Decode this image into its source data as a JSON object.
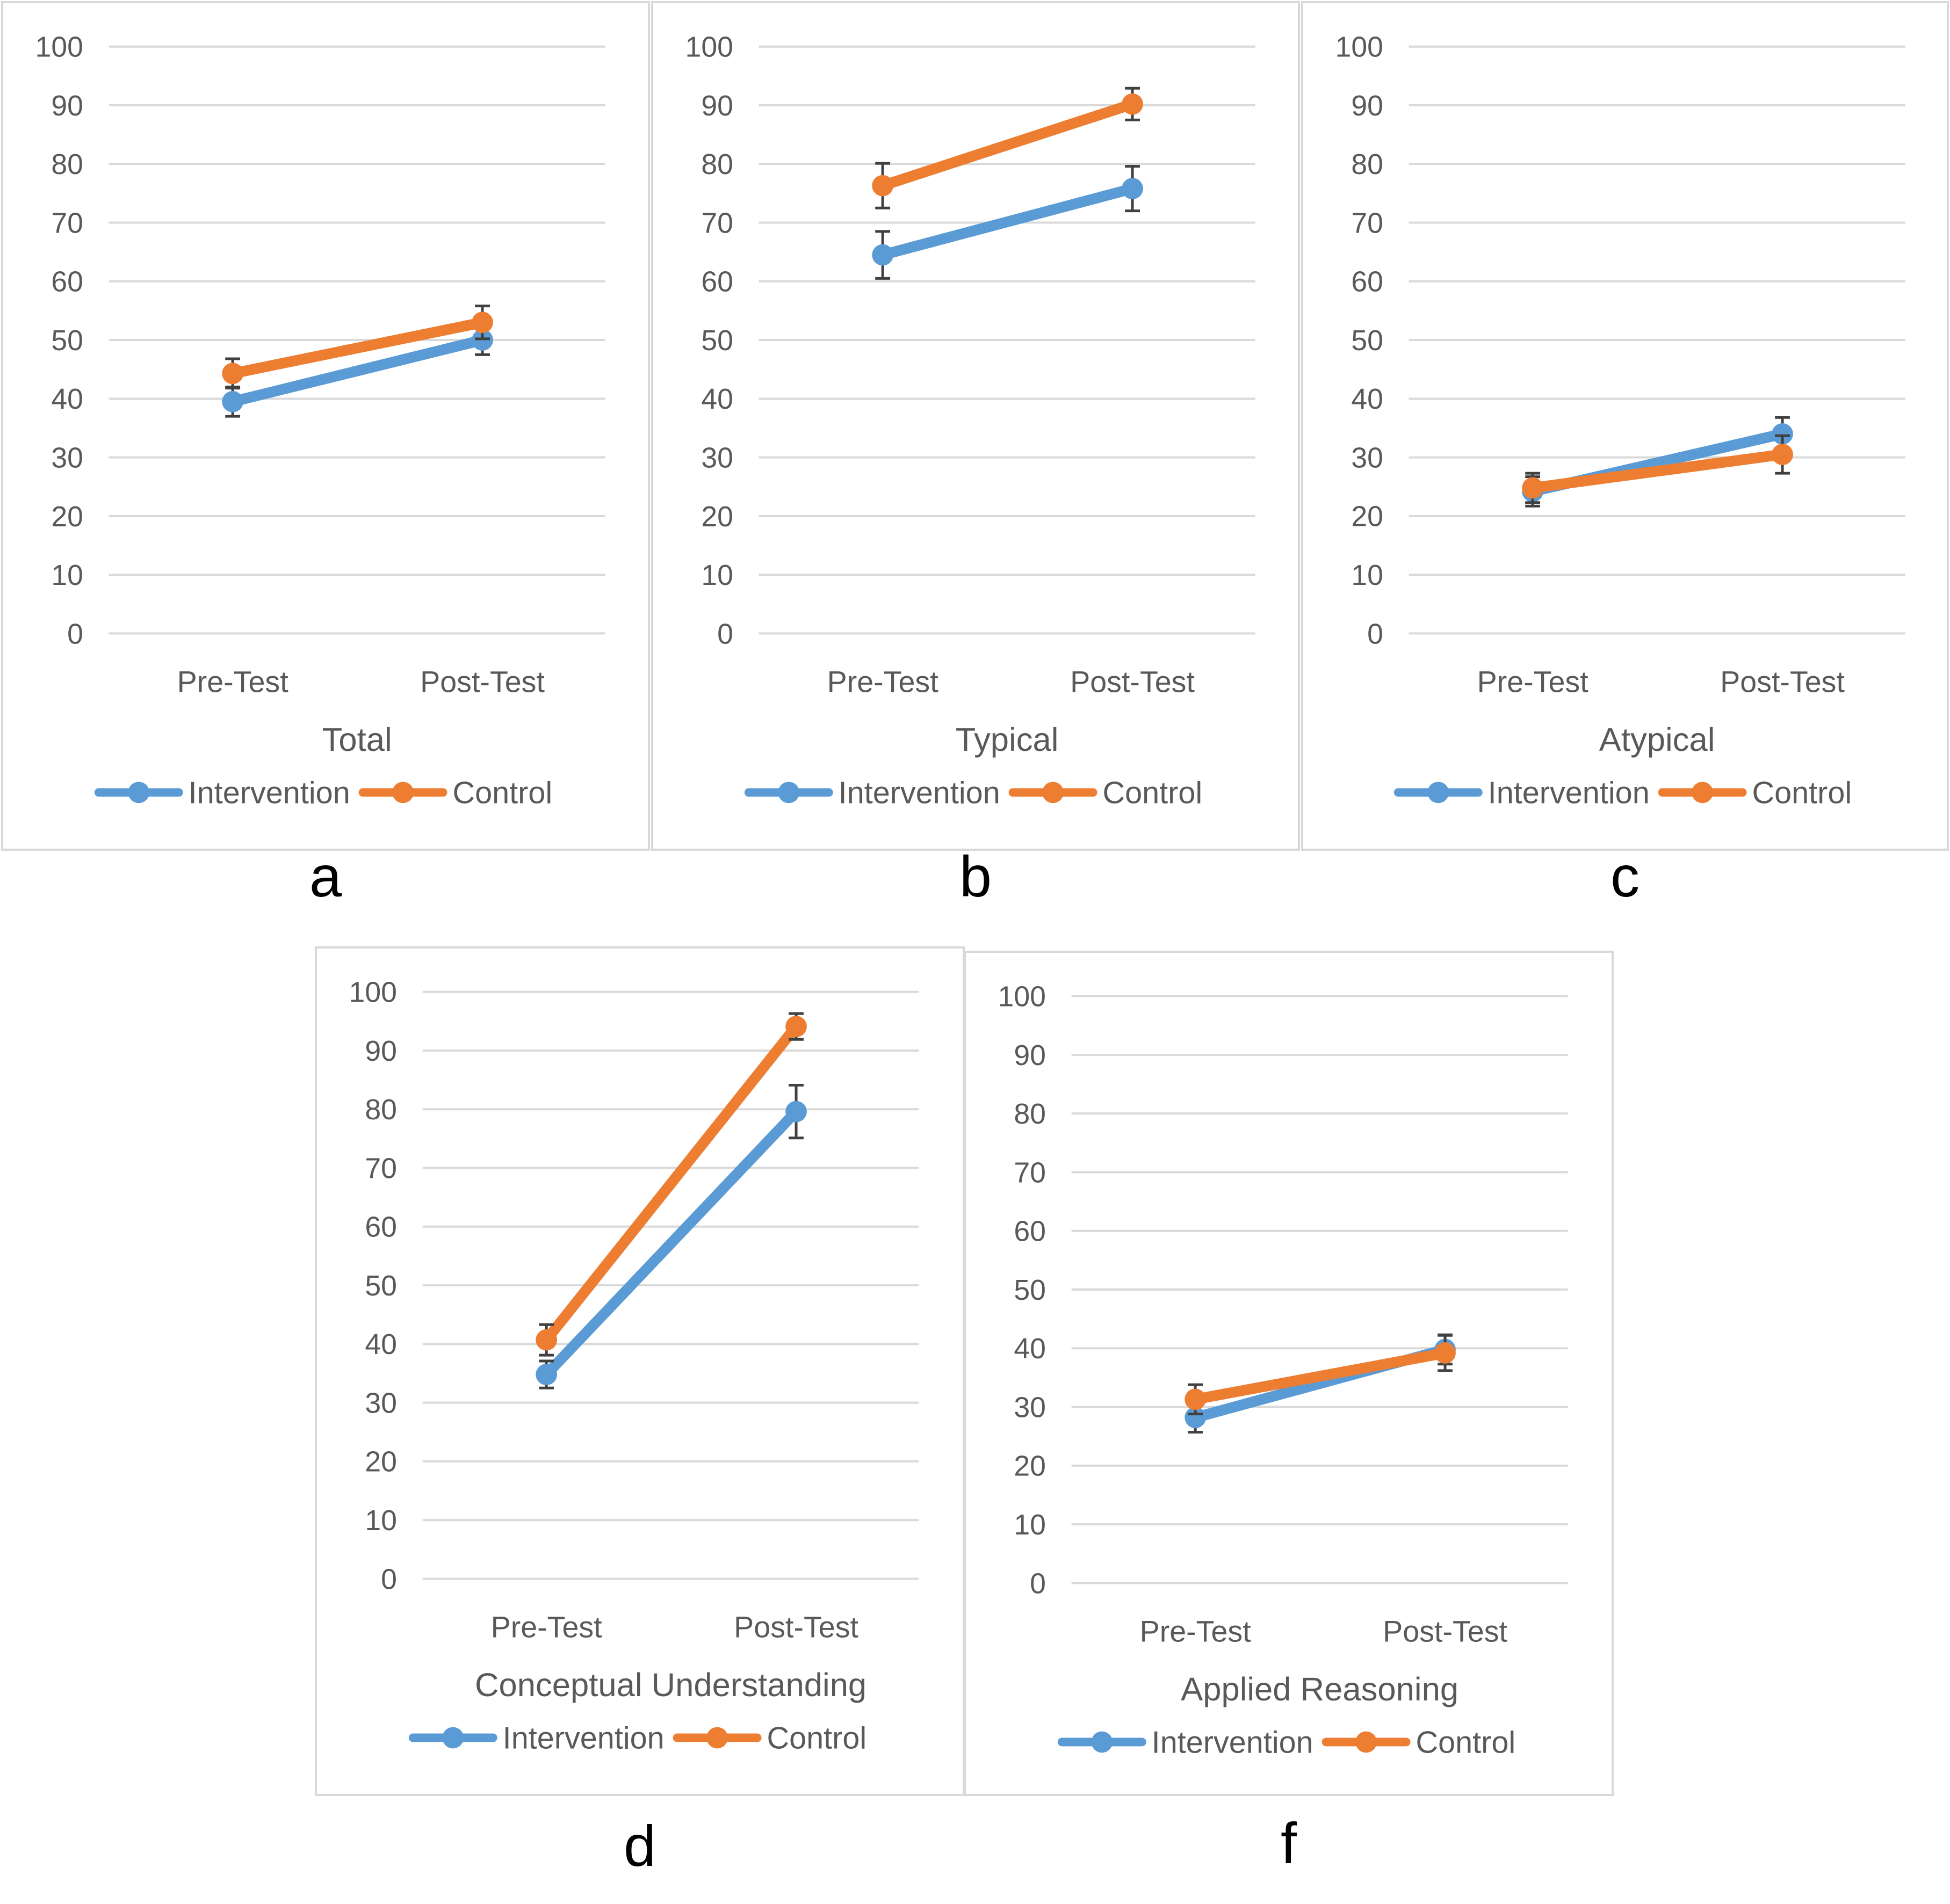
{
  "chart_data": [
    {
      "type": "line",
      "panel": "a",
      "title": "Total",
      "categories": [
        "Pre-Test",
        "Post-Test"
      ],
      "ylim": [
        0,
        100
      ],
      "yticks": [
        0,
        10,
        20,
        30,
        40,
        50,
        60,
        70,
        80,
        90,
        100
      ],
      "grid": true,
      "legend": "bottom",
      "error_bars": true,
      "series": [
        {
          "name": "Intervention",
          "color": "#5b9bd5",
          "values": [
            39.5,
            50
          ],
          "errors": [
            2.5,
            2.5
          ]
        },
        {
          "name": "Control",
          "color": "#ed7d31",
          "values": [
            44.3,
            53
          ],
          "errors": [
            2.5,
            2.8
          ]
        }
      ]
    },
    {
      "type": "line",
      "panel": "b",
      "title": "Typical",
      "categories": [
        "Pre-Test",
        "Post-Test"
      ],
      "ylim": [
        0,
        100
      ],
      "yticks": [
        0,
        10,
        20,
        30,
        40,
        50,
        60,
        70,
        80,
        90,
        100
      ],
      "grid": true,
      "legend": "bottom",
      "error_bars": true,
      "series": [
        {
          "name": "Intervention",
          "color": "#5b9bd5",
          "values": [
            64.5,
            75.8
          ],
          "errors": [
            4,
            3.8
          ]
        },
        {
          "name": "Control",
          "color": "#ed7d31",
          "values": [
            76.3,
            90.2
          ],
          "errors": [
            3.8,
            2.7
          ]
        }
      ]
    },
    {
      "type": "line",
      "panel": "c",
      "title": "Atypical",
      "categories": [
        "Pre-Test",
        "Post-Test"
      ],
      "ylim": [
        0,
        100
      ],
      "yticks": [
        0,
        10,
        20,
        30,
        40,
        50,
        60,
        70,
        80,
        90,
        100
      ],
      "grid": true,
      "legend": "bottom",
      "error_bars": true,
      "series": [
        {
          "name": "Intervention",
          "color": "#5b9bd5",
          "values": [
            24.2,
            34
          ],
          "errors": [
            2.5,
            2.8
          ]
        },
        {
          "name": "Control",
          "color": "#ed7d31",
          "values": [
            24.8,
            30.5
          ],
          "errors": [
            2.5,
            3.2
          ]
        }
      ]
    },
    {
      "type": "line",
      "panel": "d",
      "title": "Conceptual Understanding",
      "categories": [
        "Pre-Test",
        "Post-Test"
      ],
      "ylim": [
        0,
        100
      ],
      "yticks": [
        0,
        10,
        20,
        30,
        40,
        50,
        60,
        70,
        80,
        90,
        100
      ],
      "grid": true,
      "legend": "bottom",
      "error_bars": true,
      "series": [
        {
          "name": "Intervention",
          "color": "#5b9bd5",
          "values": [
            34.8,
            79.6
          ],
          "errors": [
            2.3,
            4.5
          ]
        },
        {
          "name": "Control",
          "color": "#ed7d31",
          "values": [
            40.7,
            94.1
          ],
          "errors": [
            2.6,
            2.2
          ]
        }
      ]
    },
    {
      "type": "line",
      "panel": "f",
      "title": "Applied Reasoning",
      "categories": [
        "Pre-Test",
        "Post-Test"
      ],
      "ylim": [
        0,
        100
      ],
      "yticks": [
        0,
        10,
        20,
        30,
        40,
        50,
        60,
        70,
        80,
        90,
        100
      ],
      "grid": true,
      "legend": "bottom",
      "error_bars": true,
      "series": [
        {
          "name": "Intervention",
          "color": "#5b9bd5",
          "values": [
            28.2,
            39.8
          ],
          "errors": [
            2.5,
            2.5
          ]
        },
        {
          "name": "Control",
          "color": "#ed7d31",
          "values": [
            31.3,
            39.2
          ],
          "errors": [
            2.5,
            3
          ]
        }
      ]
    }
  ]
}
